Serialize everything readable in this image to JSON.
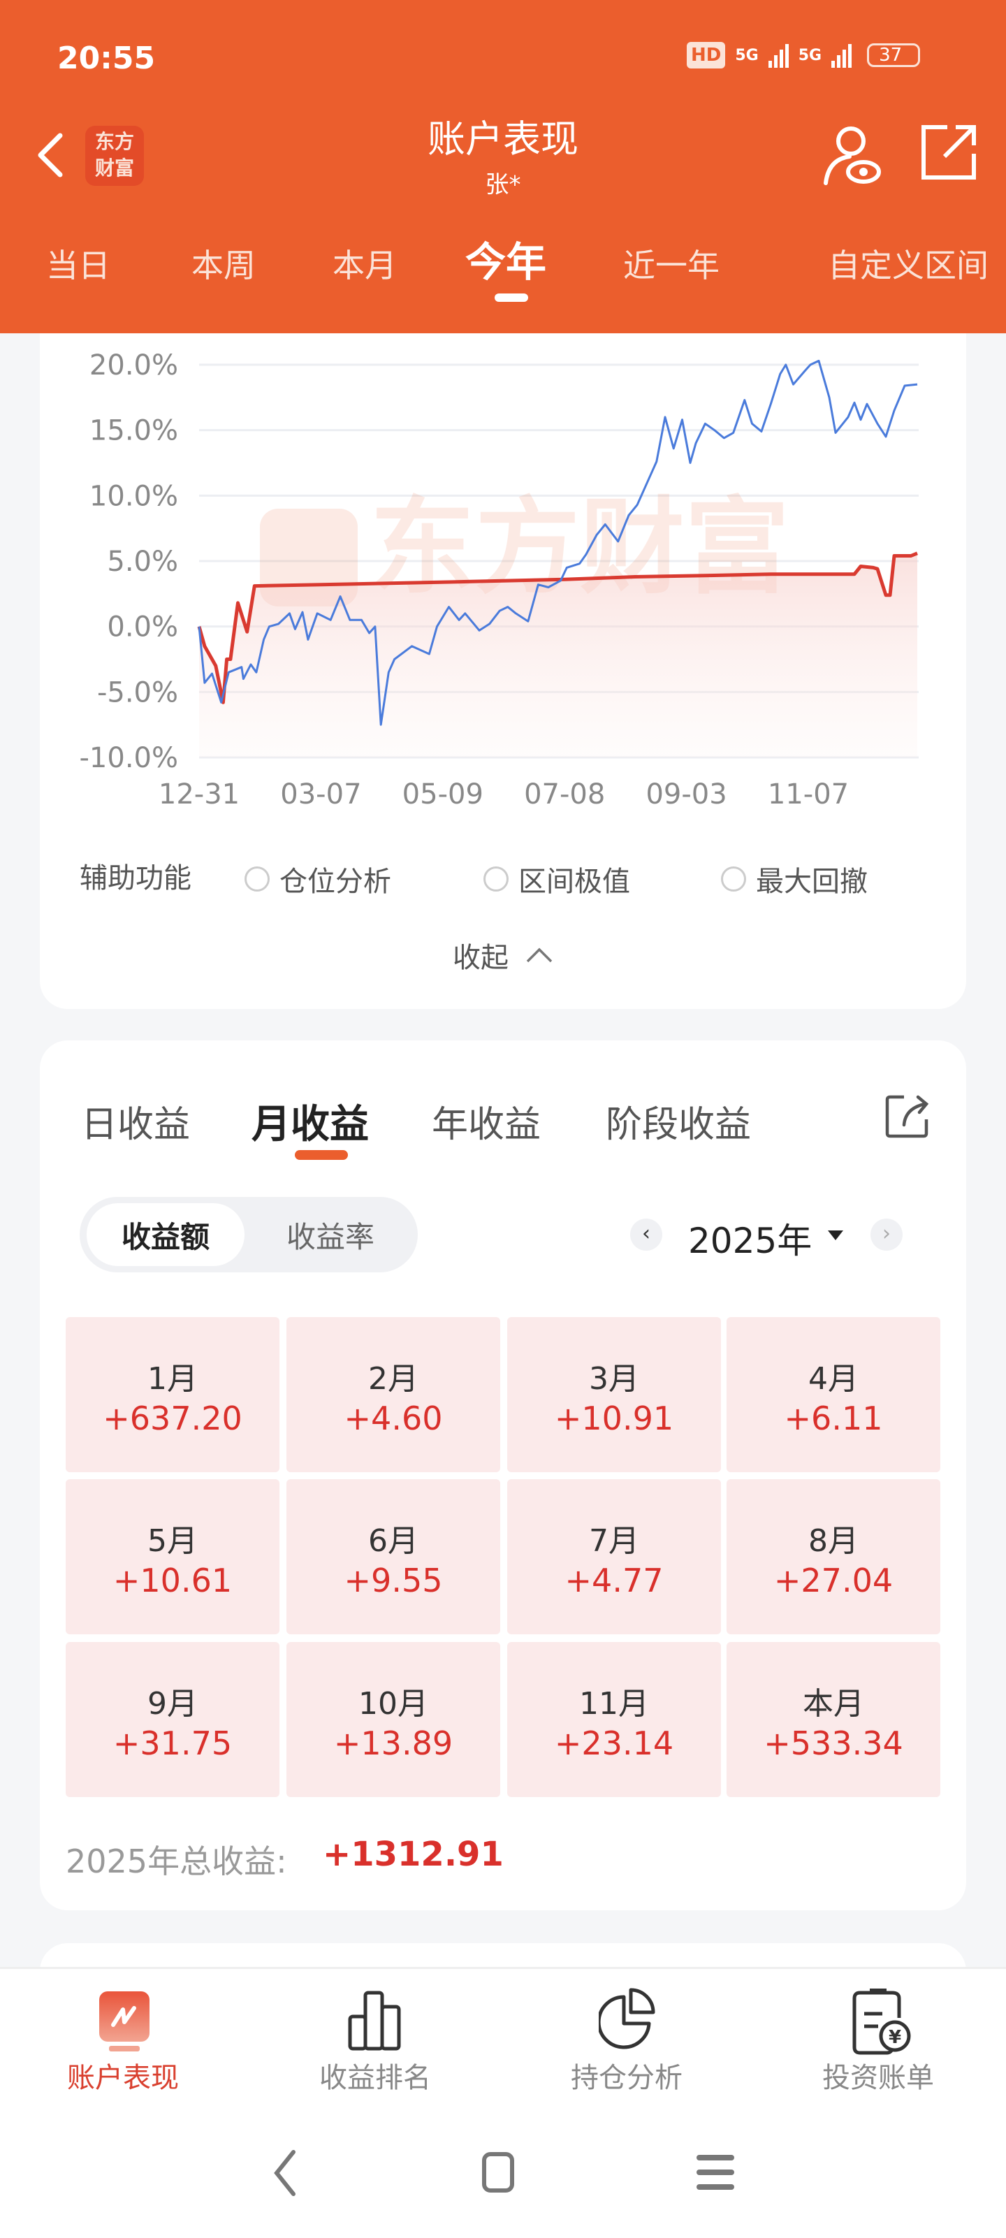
{
  "status_bar": {
    "time": "20:55",
    "hd": "HD",
    "net1": "5G",
    "net2": "5G",
    "battery": "37"
  },
  "header": {
    "title": "账户表现",
    "subtitle": "张*",
    "logo_text": "东方财富",
    "back_icon": "chevron-left-icon",
    "right_icons": [
      "person-eye-icon",
      "share-icon"
    ]
  },
  "period_tabs": [
    {
      "label": "当日"
    },
    {
      "label": "本周"
    },
    {
      "label": "本月"
    },
    {
      "label": "今年",
      "active": true
    },
    {
      "label": "近一年"
    },
    {
      "label": "自定义区间"
    }
  ],
  "colors": {
    "brand": "#EB5E2D",
    "profit_red": "#D9302B",
    "series_blue": "#4A7BDB",
    "series_red": "#D93A30",
    "cell_bg": "#FBEAEA"
  },
  "chart_data": {
    "type": "line",
    "watermark": "东方财富",
    "ylim": [
      -10,
      20
    ],
    "yticks": [
      20,
      15,
      10,
      5,
      0,
      -5,
      -10
    ],
    "ytick_labels": [
      "20.0%",
      "15.0%",
      "10.0%",
      "5.0%",
      "0.0%",
      "-5.0%",
      "-10.0%"
    ],
    "xticks": [
      "12-31",
      "03-07",
      "05-09",
      "07-08",
      "09-03",
      "11-07"
    ],
    "xlim": [
      "12-31",
      "12-29"
    ],
    "grid": true,
    "series": [
      {
        "color": "#4A7BDB",
        "points": [
          [
            "12-31",
            0
          ],
          [
            "01-03",
            -4.3
          ],
          [
            "01-07",
            -3.6
          ],
          [
            "01-12",
            -5.8
          ],
          [
            "01-16",
            -3.5
          ],
          [
            "01-23",
            -3.1
          ],
          [
            "01-24",
            -4.0
          ],
          [
            "01-28",
            -2.9
          ],
          [
            "01-31",
            -3.5
          ],
          [
            "02-04",
            -1.0
          ],
          [
            "02-07",
            0
          ],
          [
            "02-12",
            0.2
          ],
          [
            "02-18",
            1.0
          ],
          [
            "02-21",
            -0.2
          ],
          [
            "02-25",
            1.1
          ],
          [
            "02-28",
            -1.0
          ],
          [
            "03-05",
            1.0
          ],
          [
            "03-12",
            0.5
          ],
          [
            "03-17",
            2.3
          ],
          [
            "03-22",
            0.5
          ],
          [
            "03-28",
            0.5
          ],
          [
            "04-01",
            -0.5
          ],
          [
            "04-04",
            0
          ],
          [
            "04-07",
            -7.5
          ],
          [
            "04-11",
            -3.5
          ],
          [
            "04-14",
            -2.5
          ],
          [
            "04-23",
            -1.5
          ],
          [
            "05-02",
            -2.1
          ],
          [
            "05-06",
            0
          ],
          [
            "05-12",
            1.5
          ],
          [
            "05-17",
            0.5
          ],
          [
            "05-20",
            1.0
          ],
          [
            "05-27",
            -0.3
          ],
          [
            "06-01",
            0.2
          ],
          [
            "06-06",
            1.2
          ],
          [
            "06-10",
            1.5
          ],
          [
            "06-14",
            1.0
          ],
          [
            "06-20",
            0.4
          ],
          [
            "06-25",
            3.2
          ],
          [
            "06-30",
            3.0
          ],
          [
            "07-06",
            3.5
          ],
          [
            "07-09",
            4.5
          ],
          [
            "07-15",
            4.8
          ],
          [
            "07-18",
            5.5
          ],
          [
            "07-23",
            7.0
          ],
          [
            "07-27",
            7.8
          ],
          [
            "08-02",
            6.5
          ],
          [
            "08-07",
            8.5
          ],
          [
            "08-11",
            9.3
          ],
          [
            "08-17",
            11.5
          ],
          [
            "08-20",
            12.6
          ],
          [
            "08-24",
            16.0
          ],
          [
            "08-28",
            13.6
          ],
          [
            "09-01",
            15.8
          ],
          [
            "09-05",
            12.5
          ],
          [
            "09-08",
            14.0
          ],
          [
            "09-13",
            15.5
          ],
          [
            "09-18",
            15.0
          ],
          [
            "09-23",
            14.4
          ],
          [
            "09-28",
            14.8
          ],
          [
            "10-04",
            17.3
          ],
          [
            "10-08",
            15.5
          ],
          [
            "10-13",
            14.9
          ],
          [
            "10-18",
            17.0
          ],
          [
            "10-23",
            19.3
          ],
          [
            "10-26",
            20.0
          ],
          [
            "10-30",
            18.5
          ],
          [
            "11-05",
            19.5
          ],
          [
            "11-08",
            20.0
          ],
          [
            "11-12",
            20.3
          ],
          [
            "11-17",
            17.5
          ],
          [
            "11-20",
            14.8
          ],
          [
            "11-26",
            16.0
          ],
          [
            "11-29",
            17.1
          ],
          [
            "12-02",
            15.8
          ],
          [
            "12-05",
            17.0
          ],
          [
            "12-10",
            15.5
          ],
          [
            "12-14",
            14.5
          ],
          [
            "12-18",
            16.5
          ],
          [
            "12-23",
            18.4
          ],
          [
            "12-29",
            18.5
          ]
        ]
      },
      {
        "color": "#D93A30",
        "fill": true,
        "points": [
          [
            "12-31",
            0
          ],
          [
            "01-03",
            -1.5
          ],
          [
            "01-09",
            -3.0
          ],
          [
            "01-13",
            -5.8
          ],
          [
            "01-15",
            -2.5
          ],
          [
            "01-17",
            -2.5
          ],
          [
            "01-21",
            1.8
          ],
          [
            "01-26",
            -0.4
          ],
          [
            "01-30",
            3.1
          ],
          [
            "03-07",
            3.2
          ],
          [
            "05-12",
            3.4
          ],
          [
            "07-08",
            3.6
          ],
          [
            "08-10",
            3.8
          ],
          [
            "09-15",
            3.9
          ],
          [
            "10-18",
            4.0
          ],
          [
            "11-29",
            4.0
          ],
          [
            "12-02",
            4.6
          ],
          [
            "12-08",
            4.5
          ],
          [
            "12-10",
            4.4
          ],
          [
            "12-14",
            2.4
          ],
          [
            "12-16",
            2.4
          ],
          [
            "12-18",
            5.4
          ],
          [
            "12-26",
            5.4
          ],
          [
            "12-29",
            5.6
          ]
        ]
      }
    ]
  },
  "assist": {
    "label": "辅助功能",
    "options": [
      {
        "label": "仓位分析",
        "checked": false
      },
      {
        "label": "区间极值",
        "checked": false
      },
      {
        "label": "最大回撤",
        "checked": false
      }
    ],
    "collapse": "收起"
  },
  "income": {
    "tabs": [
      {
        "label": "日收益"
      },
      {
        "label": "月收益",
        "active": true
      },
      {
        "label": "年收益"
      },
      {
        "label": "阶段收益"
      }
    ],
    "toggle": [
      {
        "label": "收益额",
        "active": true
      },
      {
        "label": "收益率"
      }
    ],
    "year": "2025年",
    "months": [
      {
        "month": "1月",
        "value": "+637.20"
      },
      {
        "month": "2月",
        "value": "+4.60"
      },
      {
        "month": "3月",
        "value": "+10.91"
      },
      {
        "month": "4月",
        "value": "+6.11"
      },
      {
        "month": "5月",
        "value": "+10.61"
      },
      {
        "month": "6月",
        "value": "+9.55"
      },
      {
        "month": "7月",
        "value": "+4.77"
      },
      {
        "month": "8月",
        "value": "+27.04"
      },
      {
        "month": "9月",
        "value": "+31.75"
      },
      {
        "month": "10月",
        "value": "+13.89"
      },
      {
        "month": "11月",
        "value": "+23.14"
      },
      {
        "month": "本月",
        "value": "+533.34"
      }
    ],
    "total_label": "2025年总收益:",
    "total_value": "+1312.91"
  },
  "bottom_nav": [
    {
      "label": "账户表现",
      "icon": "trend-chart-icon",
      "active": true
    },
    {
      "label": "收益排名",
      "icon": "bar-chart-icon"
    },
    {
      "label": "持仓分析",
      "icon": "pie-chart-icon"
    },
    {
      "label": "投资账单",
      "icon": "bill-yen-icon"
    }
  ]
}
